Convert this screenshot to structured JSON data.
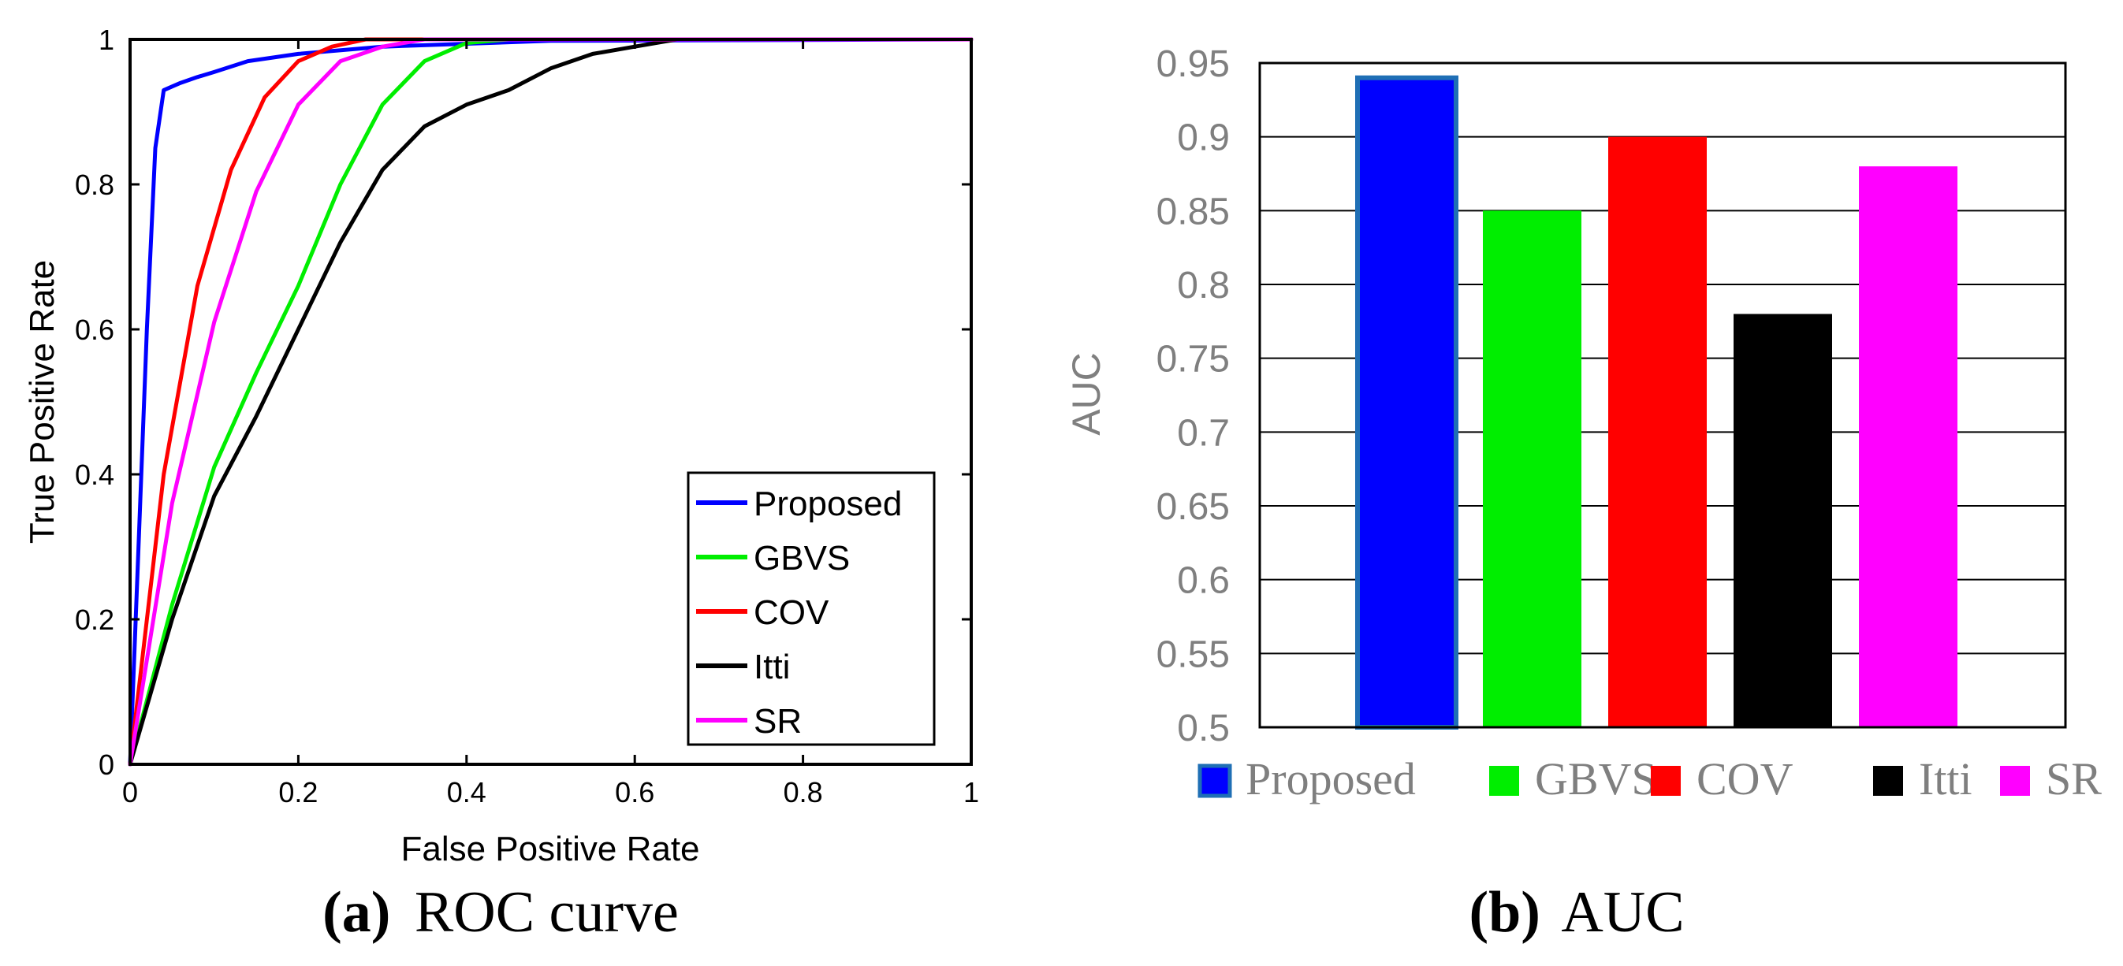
{
  "chart_data": [
    {
      "id": "roc",
      "type": "line",
      "xlabel": "False Positive Rate",
      "ylabel": "True Positive Rate",
      "xlim": [
        0,
        1
      ],
      "ylim": [
        0,
        1
      ],
      "xticks": [
        "0",
        "0.2",
        "0.4",
        "0.6",
        "0.8",
        "1"
      ],
      "yticks": [
        "0",
        "0.2",
        "0.4",
        "0.6",
        "0.8",
        "1"
      ],
      "xtick_values": [
        0,
        0.2,
        0.4,
        0.6,
        0.8,
        1
      ],
      "ytick_values": [
        0,
        0.2,
        0.4,
        0.6,
        0.8,
        1
      ],
      "grid": false,
      "legend_position": "bottom-right",
      "series": [
        {
          "name": "Proposed",
          "color": "#0000ff",
          "x": [
            0,
            0.01,
            0.02,
            0.03,
            0.04,
            0.05,
            0.06,
            0.08,
            0.1,
            0.14,
            0.2,
            0.3,
            0.5,
            1
          ],
          "y": [
            0,
            0.3,
            0.6,
            0.85,
            0.93,
            0.935,
            0.94,
            0.948,
            0.955,
            0.97,
            0.98,
            0.99,
            0.998,
            1
          ]
        },
        {
          "name": "GBVS",
          "color": "#00ee00",
          "x": [
            0,
            0.05,
            0.1,
            0.15,
            0.2,
            0.25,
            0.3,
            0.35,
            0.4,
            0.45,
            1
          ],
          "y": [
            0,
            0.22,
            0.41,
            0.54,
            0.66,
            0.8,
            0.91,
            0.97,
            0.995,
            1,
            1
          ]
        },
        {
          "name": "COV",
          "color": "#ff0000",
          "x": [
            0,
            0.04,
            0.08,
            0.12,
            0.16,
            0.2,
            0.24,
            0.28,
            1
          ],
          "y": [
            0,
            0.4,
            0.66,
            0.82,
            0.92,
            0.97,
            0.99,
            1,
            1
          ]
        },
        {
          "name": "Itti",
          "color": "#000000",
          "x": [
            0,
            0.05,
            0.1,
            0.15,
            0.2,
            0.25,
            0.3,
            0.35,
            0.4,
            0.45,
            0.5,
            0.55,
            0.6,
            0.65,
            1
          ],
          "y": [
            0,
            0.2,
            0.37,
            0.48,
            0.6,
            0.72,
            0.82,
            0.88,
            0.91,
            0.93,
            0.96,
            0.98,
            0.99,
            1,
            1
          ]
        },
        {
          "name": "SR",
          "color": "#ff00ff",
          "x": [
            0,
            0.05,
            0.1,
            0.15,
            0.2,
            0.25,
            0.3,
            0.35,
            1
          ],
          "y": [
            0,
            0.36,
            0.61,
            0.79,
            0.91,
            0.97,
            0.99,
            1,
            1
          ]
        }
      ],
      "caption_letter": "(a)",
      "caption_text": "ROC curve"
    },
    {
      "id": "auc",
      "type": "bar",
      "ylabel": "AUC",
      "ylim": [
        0.5,
        0.95
      ],
      "yticks": [
        "0.5",
        "0.55",
        "0.6",
        "0.65",
        "0.7",
        "0.75",
        "0.8",
        "0.85",
        "0.9",
        "0.95"
      ],
      "ytick_values": [
        0.5,
        0.55,
        0.6,
        0.65,
        0.7,
        0.75,
        0.8,
        0.85,
        0.9,
        0.95
      ],
      "grid": true,
      "legend_position": "bottom",
      "categories": [
        "Proposed",
        "GBVS",
        "COV",
        "Itti",
        "SR"
      ],
      "values": [
        0.94,
        0.85,
        0.9,
        0.78,
        0.88
      ],
      "colors": [
        "#0000ff",
        "#00ee00",
        "#ff0000",
        "#000000",
        "#ff00ff"
      ],
      "highlight_border_color": "#1f6fb5",
      "caption_letter": "(b)",
      "caption_text": "AUC"
    }
  ]
}
